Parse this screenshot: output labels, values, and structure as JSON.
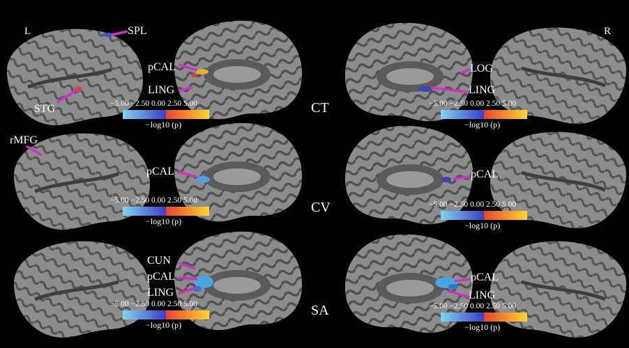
{
  "hemisphere_labels": {
    "left": "L",
    "right": "R"
  },
  "row_labels": [
    "CT",
    "CV",
    "SA"
  ],
  "regions": {
    "ct_left_lateral": [
      "SPL",
      "STG"
    ],
    "ct_left_medial": [
      "pCAL",
      "LING"
    ],
    "ct_right_medial": [
      "LOG",
      "LING"
    ],
    "cv_left_lateral": [
      "rMFG"
    ],
    "cv_left_medial": [
      "pCAL"
    ],
    "cv_right_medial": [
      "pCAL"
    ],
    "sa_left_medial": [
      "CUN",
      "pCAL",
      "LING"
    ],
    "sa_right_medial": [
      "pCAL",
      "LING"
    ]
  },
  "colorbar": {
    "ticks": "−5.00 −2.50  0.00   2.50   5.00",
    "unit": "−log10 (p)",
    "colors": {
      "neg_low": "#7fd6f0",
      "neg_high": "#3a3ec8",
      "pos_low": "#e8432a",
      "pos_high": "#ffd630"
    }
  },
  "colors": {
    "annotation_arrow": "#d02fc7",
    "cortex_light": "#8f8f8f",
    "cortex_dark": "#4a4a4a"
  }
}
